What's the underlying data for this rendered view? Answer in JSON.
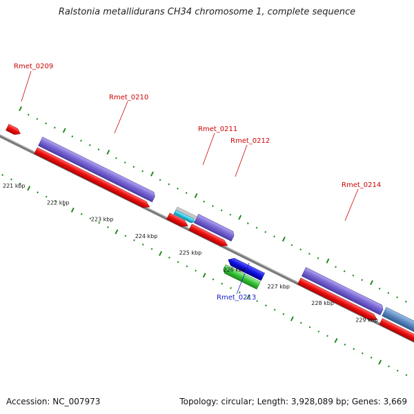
{
  "title": "Ralstonia metallidurans CH34 chromosome 1, complete sequence",
  "footer": {
    "accession": "Accession: NC_007973",
    "summary": "Topology: circular; Length: 3,928,089 bp; Genes: 3,669"
  },
  "colors": {
    "forward_cds": "#e8101a",
    "forward_gene": "#7a68d4",
    "reverse_cds": "#1010e0",
    "reverse_gene": "#36c236",
    "rna_cyan": "#22c3e0",
    "steel_gene": "#5b88c0",
    "backbone": "#7a7a7a",
    "tick": "#1d8a1d",
    "label_forward": "#cc0000",
    "label_reverse": "#1a1acc"
  },
  "kbp_labels": [
    "221 kbp",
    "222 kbp",
    "223 kbp",
    "224 kbp",
    "225 kbp",
    "226 kbp",
    "227 kbp",
    "228 kbp",
    "229 kbp"
  ],
  "gene_labels": [
    {
      "id": "rmet_0209",
      "text": "Rmet_0209",
      "strand": "forward"
    },
    {
      "id": "rmet_0210",
      "text": "Rmet_0210",
      "strand": "forward"
    },
    {
      "id": "rmet_0211",
      "text": "Rmet_0211",
      "strand": "forward"
    },
    {
      "id": "rmet_0212",
      "text": "Rmet_0212",
      "strand": "forward"
    },
    {
      "id": "rmet_0213",
      "text": "Rmet_0213",
      "strand": "reverse"
    },
    {
      "id": "rmet_0214",
      "text": "Rmet_0214",
      "strand": "forward"
    }
  ]
}
